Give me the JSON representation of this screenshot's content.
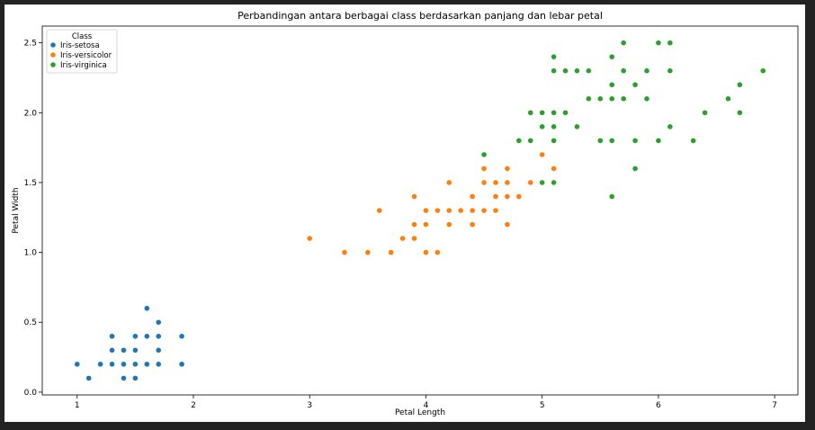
{
  "chart_data": {
    "type": "scatter",
    "title": "Perbandingan antara berbagai class berdasarkan panjang dan lebar petal",
    "xlabel": "Petal Length",
    "ylabel": "Petal Width",
    "xlim": [
      0.7,
      7.2
    ],
    "ylim": [
      -0.02,
      2.62
    ],
    "xticks": [
      1,
      2,
      3,
      4,
      5,
      6,
      7
    ],
    "yticks": [
      0.0,
      0.5,
      1.0,
      1.5,
      2.0,
      2.5
    ],
    "xtick_labels": [
      "1",
      "2",
      "3",
      "4",
      "5",
      "6",
      "7"
    ],
    "ytick_labels": [
      "0.0",
      "0.5",
      "1.0",
      "1.5",
      "2.0",
      "2.5"
    ],
    "grid": false,
    "legend": {
      "title": "Class",
      "placement": "top-left"
    },
    "series": [
      {
        "name": "Iris-setosa",
        "color": "#1f77b4",
        "points": [
          [
            1.0,
            0.2
          ],
          [
            1.1,
            0.1
          ],
          [
            1.2,
            0.2
          ],
          [
            1.3,
            0.2
          ],
          [
            1.3,
            0.3
          ],
          [
            1.3,
            0.4
          ],
          [
            1.4,
            0.1
          ],
          [
            1.4,
            0.2
          ],
          [
            1.4,
            0.3
          ],
          [
            1.5,
            0.1
          ],
          [
            1.5,
            0.2
          ],
          [
            1.5,
            0.3
          ],
          [
            1.5,
            0.4
          ],
          [
            1.6,
            0.2
          ],
          [
            1.6,
            0.4
          ],
          [
            1.6,
            0.6
          ],
          [
            1.7,
            0.2
          ],
          [
            1.7,
            0.3
          ],
          [
            1.7,
            0.4
          ],
          [
            1.7,
            0.5
          ],
          [
            1.9,
            0.2
          ],
          [
            1.9,
            0.4
          ]
        ]
      },
      {
        "name": "Iris-versicolor",
        "color": "#ff7f0e",
        "points": [
          [
            3.0,
            1.1
          ],
          [
            3.3,
            1.0
          ],
          [
            3.5,
            1.0
          ],
          [
            3.6,
            1.3
          ],
          [
            3.7,
            1.0
          ],
          [
            3.8,
            1.1
          ],
          [
            3.9,
            1.1
          ],
          [
            3.9,
            1.2
          ],
          [
            3.9,
            1.4
          ],
          [
            4.0,
            1.0
          ],
          [
            4.0,
            1.2
          ],
          [
            4.0,
            1.3
          ],
          [
            4.1,
            1.0
          ],
          [
            4.1,
            1.3
          ],
          [
            4.2,
            1.2
          ],
          [
            4.2,
            1.3
          ],
          [
            4.2,
            1.5
          ],
          [
            4.3,
            1.3
          ],
          [
            4.4,
            1.2
          ],
          [
            4.4,
            1.3
          ],
          [
            4.4,
            1.4
          ],
          [
            4.5,
            1.3
          ],
          [
            4.5,
            1.5
          ],
          [
            4.5,
            1.6
          ],
          [
            4.6,
            1.3
          ],
          [
            4.6,
            1.4
          ],
          [
            4.6,
            1.5
          ],
          [
            4.7,
            1.2
          ],
          [
            4.7,
            1.4
          ],
          [
            4.7,
            1.5
          ],
          [
            4.7,
            1.6
          ],
          [
            4.8,
            1.4
          ],
          [
            4.9,
            1.5
          ],
          [
            5.0,
            1.7
          ],
          [
            5.1,
            1.6
          ]
        ]
      },
      {
        "name": "Iris-virginica",
        "color": "#2ca02c",
        "points": [
          [
            4.5,
            1.7
          ],
          [
            4.8,
            1.8
          ],
          [
            4.9,
            1.8
          ],
          [
            4.9,
            2.0
          ],
          [
            5.0,
            1.5
          ],
          [
            5.0,
            1.9
          ],
          [
            5.0,
            2.0
          ],
          [
            5.1,
            1.5
          ],
          [
            5.1,
            1.8
          ],
          [
            5.1,
            1.9
          ],
          [
            5.1,
            2.0
          ],
          [
            5.1,
            2.3
          ],
          [
            5.1,
            2.4
          ],
          [
            5.2,
            2.0
          ],
          [
            5.2,
            2.3
          ],
          [
            5.3,
            1.9
          ],
          [
            5.3,
            2.3
          ],
          [
            5.4,
            2.1
          ],
          [
            5.4,
            2.3
          ],
          [
            5.5,
            1.8
          ],
          [
            5.5,
            2.1
          ],
          [
            5.6,
            1.4
          ],
          [
            5.6,
            1.8
          ],
          [
            5.6,
            2.1
          ],
          [
            5.6,
            2.2
          ],
          [
            5.6,
            2.4
          ],
          [
            5.7,
            2.1
          ],
          [
            5.7,
            2.3
          ],
          [
            5.7,
            2.5
          ],
          [
            5.8,
            1.6
          ],
          [
            5.8,
            1.8
          ],
          [
            5.8,
            2.2
          ],
          [
            5.9,
            2.1
          ],
          [
            5.9,
            2.3
          ],
          [
            6.0,
            1.8
          ],
          [
            6.0,
            2.5
          ],
          [
            6.1,
            1.9
          ],
          [
            6.1,
            2.3
          ],
          [
            6.1,
            2.5
          ],
          [
            6.3,
            1.8
          ],
          [
            6.4,
            2.0
          ],
          [
            6.6,
            2.1
          ],
          [
            6.7,
            2.0
          ],
          [
            6.7,
            2.2
          ],
          [
            6.9,
            2.3
          ]
        ]
      }
    ]
  }
}
